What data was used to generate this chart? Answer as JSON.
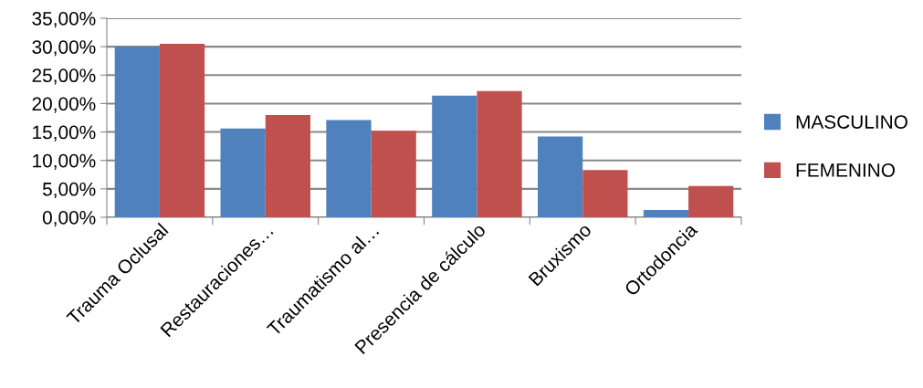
{
  "chart_data": {
    "type": "bar",
    "categories": [
      "Trauma Oclusal",
      "Restauraciones…",
      "Traumatismo al…",
      "Presencia de cálculo",
      "Bruxismo",
      "Ortodoncia"
    ],
    "series": [
      {
        "name": "MASCULINO",
        "color": "#4f81bd",
        "values": [
          30.0,
          15.6,
          17.1,
          21.4,
          14.2,
          1.3
        ]
      },
      {
        "name": "FEMENINO",
        "color": "#c0504d",
        "values": [
          30.5,
          18.0,
          15.2,
          22.2,
          8.3,
          5.5
        ]
      }
    ],
    "ylim": [
      0,
      35
    ],
    "yticks": [
      {
        "value": 0,
        "label": "0,00%"
      },
      {
        "value": 5,
        "label": "5,00%"
      },
      {
        "value": 10,
        "label": "10,00%"
      },
      {
        "value": 15,
        "label": "15,00%"
      },
      {
        "value": 20,
        "label": "20,00%"
      },
      {
        "value": 25,
        "label": "25,00%"
      },
      {
        "value": 30,
        "label": "30,00%"
      },
      {
        "value": 35,
        "label": "35,00%"
      }
    ],
    "grid": "y",
    "legend": "right"
  }
}
